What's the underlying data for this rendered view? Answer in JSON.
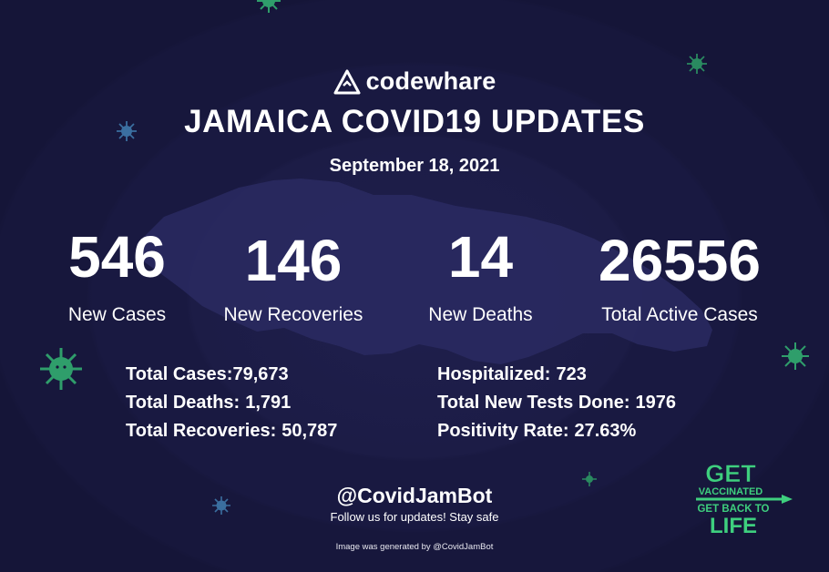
{
  "brand": {
    "name": "codewhare"
  },
  "title": "JAMAICA COVID19 UPDATES",
  "date": "September 18, 2021",
  "stats": [
    {
      "value": "546",
      "label": "New Cases"
    },
    {
      "value": "146",
      "label": "New Recoveries"
    },
    {
      "value": "14",
      "label": "New Deaths"
    },
    {
      "value": "26556",
      "label": "Total Active Cases"
    }
  ],
  "details_left": [
    {
      "label": "Total Cases:",
      "value": "79,673"
    },
    {
      "label": "Total Deaths:",
      "value": "1,791"
    },
    {
      "label": "Total Recoveries:",
      "value": "50,787"
    }
  ],
  "details_right": [
    {
      "label": "Hospitalized:",
      "value": "723"
    },
    {
      "label": "Total New Tests Done:",
      "value": "1976"
    },
    {
      "label": "Positivity Rate:",
      "value": "27.63%"
    }
  ],
  "footer": {
    "handle": "@CovidJamBot",
    "follow": "Follow us for updates! Stay safe",
    "credit": "Image was generated by @CovidJamBot"
  },
  "badge": {
    "line1": "GET",
    "line2": "VACCINATED",
    "line3": "GET BACK TO",
    "line4": "LIFE"
  },
  "colors": {
    "background": "#16163a",
    "island": "#2a2a62",
    "virus": "#2f9e6b",
    "badge": "#3ecf7e",
    "text": "#ffffff"
  },
  "icons": [
    "codewhare-logo-icon",
    "virus-icon",
    "syringe-icon"
  ]
}
